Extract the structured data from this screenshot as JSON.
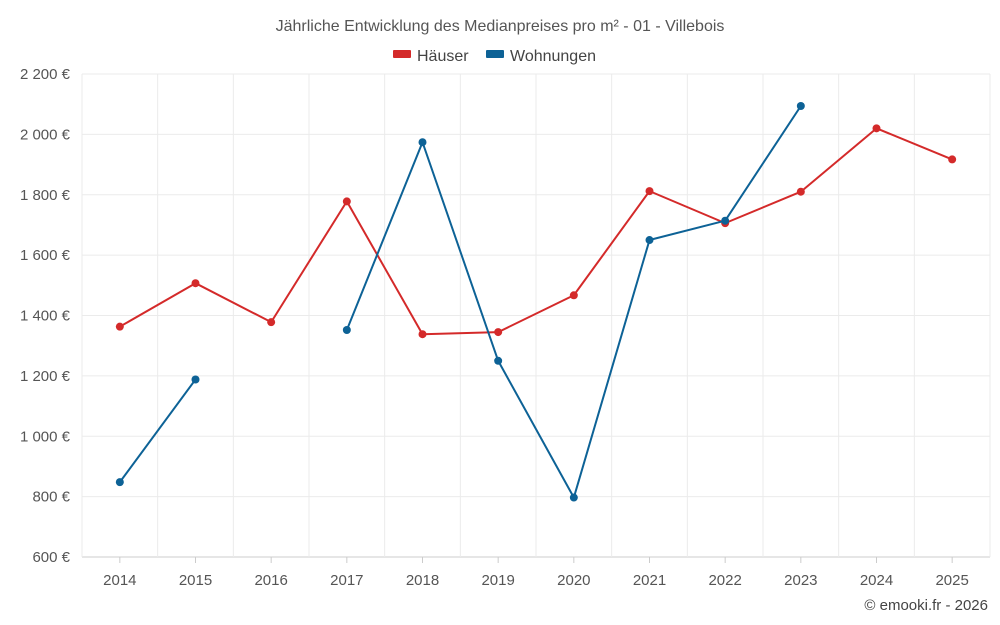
{
  "chart_data": {
    "type": "line",
    "title": "Jährliche Entwicklung des Medianpreises pro m² - 01 - Villebois",
    "categories": [
      "2014",
      "2015",
      "2016",
      "2017",
      "2018",
      "2019",
      "2020",
      "2021",
      "2022",
      "2023",
      "2024",
      "2025"
    ],
    "y_ticks": [
      "600 €",
      "800 €",
      "1 000 €",
      "1 200 €",
      "1 400 €",
      "1 600 €",
      "1 800 €",
      "2 000 €",
      "2 200 €"
    ],
    "ylim": [
      600,
      2200
    ],
    "grid": true,
    "legend_position": "top-center",
    "series": [
      {
        "name": "Häuser",
        "color": "#d42a2a",
        "values": [
          1363,
          1507,
          1378,
          1778,
          1338,
          1345,
          1467,
          1812,
          1706,
          1810,
          2020,
          1917
        ]
      },
      {
        "name": "Wohnungen",
        "color": "#0d6296",
        "values": [
          848,
          1188,
          null,
          1352,
          1974,
          1250,
          797,
          1650,
          1714,
          2094,
          null,
          null
        ]
      }
    ]
  },
  "credit": "© emooki.fr - 2026"
}
